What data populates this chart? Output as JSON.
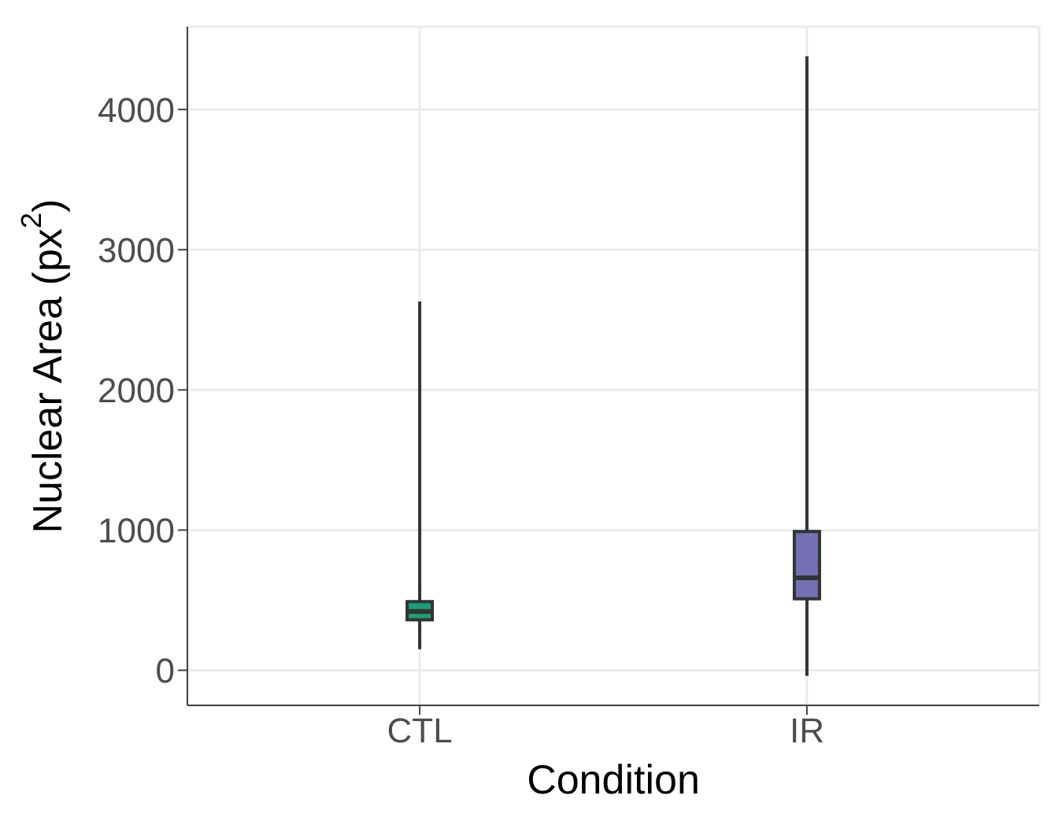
{
  "chart_data": {
    "type": "box",
    "xlabel": "Condition",
    "ylabel": "Nuclear Area (px$^{2}$)",
    "categories": [
      "CTL",
      "IR"
    ],
    "series": [
      {
        "color": "#1b9e77",
        "boxes": [
          {
            "low": 150,
            "q1": 360,
            "median": 420,
            "q3": 490,
            "high": 2630
          },
          null
        ]
      },
      {
        "color": "#7570b3",
        "boxes": [
          null,
          {
            "low": -40,
            "q1": 510,
            "median": 660,
            "q3": 990,
            "high": 4380
          }
        ]
      }
    ],
    "ylim": [
      -250,
      4590
    ],
    "yticks": [
      0,
      1000,
      2000,
      3000,
      4000
    ],
    "grid": true
  }
}
